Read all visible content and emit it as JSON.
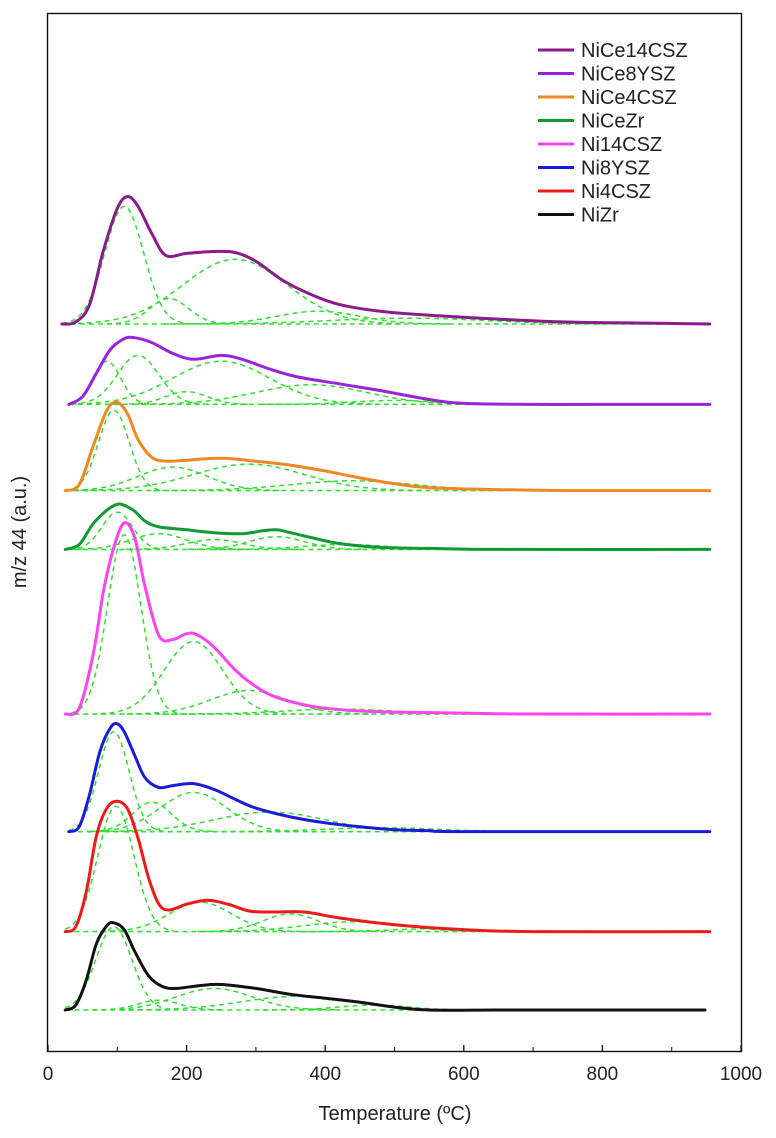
{
  "chart_data": {
    "type": "line",
    "title": "",
    "xlabel": "Temperature (ºC)",
    "ylabel": "m/z 44 (a.u.)",
    "xlim": [
      0,
      1000
    ],
    "xticks": [
      0,
      200,
      400,
      600,
      800,
      1000
    ],
    "grid": false,
    "legend_position": "top-right",
    "fit_component_color": "#33dd33",
    "series": [
      {
        "name": "NiCe14CSZ",
        "color": "#8b1a8b",
        "offset": 7.0,
        "x": [
          20,
          40,
          60,
          80,
          100,
          115,
          130,
          150,
          170,
          200,
          240,
          270,
          300,
          340,
          380,
          420,
          480,
          550,
          650,
          750,
          850,
          955
        ],
        "y": [
          0,
          0.02,
          0.2,
          0.75,
          1.18,
          1.3,
          1.2,
          0.92,
          0.7,
          0.72,
          0.74,
          0.73,
          0.64,
          0.44,
          0.3,
          0.2,
          0.13,
          0.09,
          0.05,
          0.02,
          0.01,
          0.0
        ]
      },
      {
        "name": "NiCe8YSZ",
        "color": "#9a22dd",
        "offset": 6.18,
        "x": [
          30,
          50,
          70,
          90,
          110,
          125,
          150,
          180,
          210,
          250,
          280,
          320,
          360,
          420,
          480,
          550,
          600,
          700,
          800,
          955
        ],
        "y": [
          0,
          0.08,
          0.32,
          0.56,
          0.67,
          0.68,
          0.63,
          0.52,
          0.46,
          0.5,
          0.46,
          0.36,
          0.28,
          0.21,
          0.14,
          0.05,
          0.01,
          0.0,
          0.0,
          0.0
        ]
      },
      {
        "name": "NiCe4CSZ",
        "color": "#ee8822",
        "offset": 5.3,
        "x": [
          25,
          45,
          65,
          85,
          100,
          115,
          130,
          150,
          170,
          200,
          250,
          300,
          350,
          400,
          450,
          500,
          550,
          650,
          750,
          955
        ],
        "y": [
          0,
          0.06,
          0.45,
          0.82,
          0.9,
          0.78,
          0.52,
          0.34,
          0.3,
          0.31,
          0.33,
          0.3,
          0.26,
          0.2,
          0.13,
          0.07,
          0.03,
          0.01,
          0.0,
          0.0
        ]
      },
      {
        "name": "NiCeZr",
        "color": "#119933",
        "offset": 4.7,
        "x": [
          25,
          45,
          65,
          85,
          100,
          110,
          125,
          140,
          160,
          200,
          240,
          280,
          310,
          330,
          350,
          380,
          420,
          480,
          550,
          650,
          955
        ],
        "y": [
          0,
          0.05,
          0.26,
          0.4,
          0.46,
          0.45,
          0.39,
          0.29,
          0.23,
          0.2,
          0.17,
          0.16,
          0.19,
          0.2,
          0.17,
          0.12,
          0.06,
          0.02,
          0.01,
          0.0,
          0.0
        ]
      },
      {
        "name": "Ni14CSZ",
        "color": "#ff44ee",
        "offset": 3.02,
        "x": [
          25,
          45,
          65,
          80,
          95,
          110,
          125,
          140,
          160,
          180,
          200,
          215,
          240,
          270,
          300,
          330,
          380,
          430,
          500,
          600,
          700,
          955
        ],
        "y": [
          0,
          0.06,
          0.6,
          1.25,
          1.7,
          1.95,
          1.8,
          1.3,
          0.8,
          0.76,
          0.82,
          0.81,
          0.68,
          0.45,
          0.28,
          0.17,
          0.08,
          0.04,
          0.02,
          0.01,
          0.0,
          0.0
        ]
      },
      {
        "name": "Ni8YSZ",
        "color": "#1a1ad8",
        "offset": 1.82,
        "x": [
          30,
          45,
          60,
          75,
          90,
          100,
          110,
          125,
          140,
          160,
          180,
          210,
          240,
          270,
          300,
          350,
          400,
          450,
          500,
          550,
          600,
          955
        ],
        "y": [
          0,
          0.05,
          0.38,
          0.82,
          1.06,
          1.1,
          1.02,
          0.78,
          0.55,
          0.45,
          0.47,
          0.49,
          0.43,
          0.33,
          0.24,
          0.15,
          0.09,
          0.05,
          0.02,
          0.01,
          0.0,
          0.0
        ]
      },
      {
        "name": "Ni4CSZ",
        "color": "#ee1a1a",
        "offset": 0.8,
        "x": [
          25,
          40,
          55,
          70,
          85,
          100,
          115,
          130,
          145,
          160,
          175,
          200,
          230,
          260,
          290,
          320,
          370,
          420,
          500,
          600,
          700,
          955
        ],
        "y": [
          0,
          0.05,
          0.4,
          0.98,
          1.26,
          1.33,
          1.25,
          0.95,
          0.55,
          0.28,
          0.22,
          0.28,
          0.32,
          0.28,
          0.21,
          0.2,
          0.2,
          0.14,
          0.07,
          0.02,
          0.0,
          0.0
        ]
      },
      {
        "name": "NiZr",
        "color": "#111111",
        "offset": 0.0,
        "x": [
          25,
          40,
          55,
          70,
          85,
          95,
          110,
          125,
          145,
          165,
          185,
          220,
          250,
          300,
          350,
          400,
          450,
          500,
          550,
          650,
          750,
          948
        ],
        "y": [
          0,
          0.05,
          0.3,
          0.68,
          0.86,
          0.89,
          0.82,
          0.6,
          0.35,
          0.24,
          0.22,
          0.25,
          0.26,
          0.22,
          0.16,
          0.12,
          0.08,
          0.03,
          0.0,
          0.0,
          0.0,
          0.0
        ]
      }
    ],
    "fit_components": [
      {
        "series": "NiCe14CSZ",
        "peaks": [
          [
            110,
            1.2,
            28
          ],
          [
            175,
            0.26,
            28
          ],
          [
            270,
            0.66,
            75
          ],
          [
            390,
            0.13,
            60
          ],
          [
            520,
            0.06,
            110
          ]
        ]
      },
      {
        "series": "NiCe8YSZ",
        "peaks": [
          [
            85,
            0.44,
            20
          ],
          [
            130,
            0.5,
            30
          ],
          [
            200,
            0.13,
            30
          ],
          [
            250,
            0.44,
            70
          ],
          [
            380,
            0.2,
            80
          ],
          [
            500,
            0.04,
            60
          ]
        ]
      },
      {
        "series": "NiCe4CSZ",
        "peaks": [
          [
            95,
            0.82,
            22
          ],
          [
            180,
            0.24,
            50
          ],
          [
            290,
            0.27,
            80
          ],
          [
            440,
            0.1,
            90
          ]
        ]
      },
      {
        "series": "NiCeZr",
        "peaks": [
          [
            100,
            0.38,
            22
          ],
          [
            160,
            0.16,
            40
          ],
          [
            240,
            0.1,
            40
          ],
          [
            330,
            0.13,
            40
          ],
          [
            430,
            0.05,
            60
          ]
        ]
      },
      {
        "series": "Ni14CSZ",
        "peaks": [
          [
            110,
            1.83,
            24
          ],
          [
            210,
            0.74,
            42
          ],
          [
            290,
            0.24,
            55
          ],
          [
            420,
            0.05,
            80
          ]
        ]
      },
      {
        "series": "Ni8YSZ",
        "peaks": [
          [
            95,
            1.02,
            22
          ],
          [
            150,
            0.3,
            28
          ],
          [
            210,
            0.4,
            48
          ],
          [
            320,
            0.2,
            80
          ],
          [
            480,
            0.04,
            80
          ]
        ]
      },
      {
        "series": "Ni4CSZ",
        "peaks": [
          [
            98,
            1.28,
            26
          ],
          [
            220,
            0.3,
            45
          ],
          [
            350,
            0.18,
            40
          ],
          [
            440,
            0.1,
            70
          ],
          [
            560,
            0.03,
            60
          ]
        ]
      },
      {
        "series": "NiZr",
        "peaks": [
          [
            95,
            0.85,
            26
          ],
          [
            160,
            0.1,
            30
          ],
          [
            240,
            0.22,
            55
          ],
          [
            360,
            0.14,
            80
          ],
          [
            470,
            0.05,
            50
          ]
        ]
      }
    ]
  }
}
